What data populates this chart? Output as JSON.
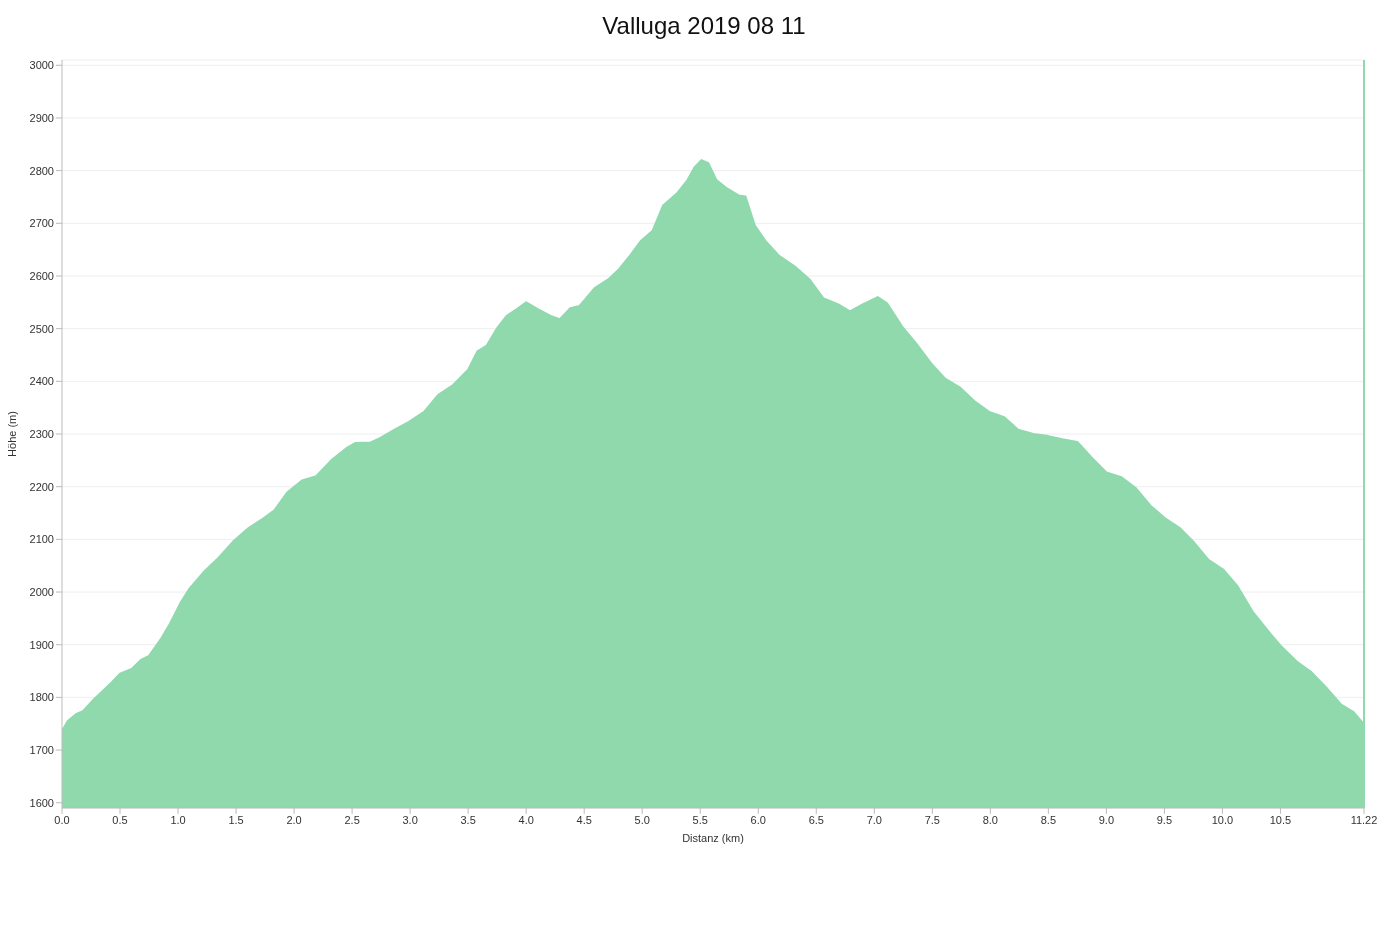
{
  "chart_data": {
    "type": "area",
    "title": "Valluga 2019 08 11",
    "xlabel": "Distanz   (km)",
    "ylabel": "Höhe (m)",
    "x": [
      0,
      0.05,
      0.12,
      0.18,
      0.26,
      0.34,
      0.43,
      0.5,
      0.6,
      0.68,
      0.75,
      0.85,
      0.93,
      1.02,
      1.1,
      1.23,
      1.35,
      1.48,
      1.61,
      1.73,
      1.83,
      1.94,
      2.07,
      2.19,
      2.32,
      2.45,
      2.53,
      2.66,
      2.74,
      2.87,
      2.99,
      3.12,
      3.24,
      3.37,
      3.5,
      3.58,
      3.66,
      3.75,
      3.83,
      3.92,
      4.0,
      4.1,
      4.21,
      4.29,
      4.38,
      4.46,
      4.59,
      4.71,
      4.8,
      4.9,
      4.99,
      5.09,
      5.18,
      5.3,
      5.39,
      5.45,
      5.51,
      5.57,
      5.64,
      5.72,
      5.83,
      5.89,
      5.97,
      6.06,
      6.18,
      6.31,
      6.44,
      6.56,
      6.69,
      6.79,
      6.9,
      7.03,
      7.11,
      7.24,
      7.36,
      7.49,
      7.61,
      7.74,
      7.87,
      7.99,
      8.12,
      8.24,
      8.37,
      8.5,
      8.62,
      8.75,
      8.87,
      9.0,
      9.13,
      9.25,
      9.38,
      9.5,
      9.63,
      9.76,
      9.88,
      10.01,
      10.13,
      10.26,
      10.39,
      10.51,
      10.64,
      10.76,
      10.89,
      11.02,
      11.13,
      11.22
    ],
    "series": [
      {
        "color": "#8fd9ad",
        "values": [
          1736,
          1755,
          1768,
          1774,
          1793,
          1810,
          1829,
          1845,
          1854,
          1871,
          1879,
          1910,
          1940,
          1979,
          2007,
          2040,
          2065,
          2097,
          2122,
          2139,
          2155,
          2189,
          2212,
          2220,
          2250,
          2273,
          2283,
          2284,
          2292,
          2309,
          2323,
          2342,
          2374,
          2393,
          2422,
          2457,
          2468,
          2501,
          2524,
          2537,
          2550,
          2537,
          2524,
          2518,
          2539,
          2543,
          2577,
          2594,
          2613,
          2640,
          2667,
          2686,
          2734,
          2757,
          2782,
          2806,
          2820,
          2814,
          2782,
          2768,
          2753,
          2751,
          2696,
          2667,
          2638,
          2619,
          2594,
          2558,
          2546,
          2533,
          2546,
          2560,
          2548,
          2504,
          2472,
          2434,
          2405,
          2388,
          2361,
          2342,
          2332,
          2308,
          2300,
          2296,
          2290,
          2285,
          2256,
          2227,
          2218,
          2198,
          2164,
          2141,
          2122,
          2093,
          2061,
          2042,
          2011,
          1963,
          1927,
          1896,
          1868,
          1849,
          1820,
          1787,
          1772,
          1749
        ]
      }
    ],
    "xlim": [
      0,
      11.22
    ],
    "xticks": [
      {
        "value": 0,
        "label": "0.0"
      },
      0.5,
      {
        "value": 1,
        "label": "1.0"
      },
      1.5,
      {
        "value": 2,
        "label": "2.0"
      },
      2.5,
      {
        "value": 3,
        "label": "3.0"
      },
      3.5,
      {
        "value": 4,
        "label": "4.0"
      },
      4.5,
      {
        "value": 5,
        "label": "5.0"
      },
      5.5,
      {
        "value": 6,
        "label": "6.0"
      },
      6.5,
      {
        "value": 7,
        "label": "7.0"
      },
      7.5,
      {
        "value": 8,
        "label": "8.0"
      },
      8.5,
      {
        "value": 9,
        "label": "9.0"
      },
      9.5,
      {
        "value": 10,
        "label": "10.0"
      },
      10.5,
      11.22
    ],
    "ylim": [
      1590,
      3010
    ],
    "yticks": [
      1600,
      1700,
      1800,
      1900,
      2000,
      2100,
      2200,
      2300,
      2400,
      2500,
      2600,
      2700,
      2800,
      2900,
      3000
    ],
    "ref_lines": [
      {
        "axis": "x",
        "value": 11.22,
        "color": "#8fd9ad"
      }
    ],
    "grid": "y"
  }
}
